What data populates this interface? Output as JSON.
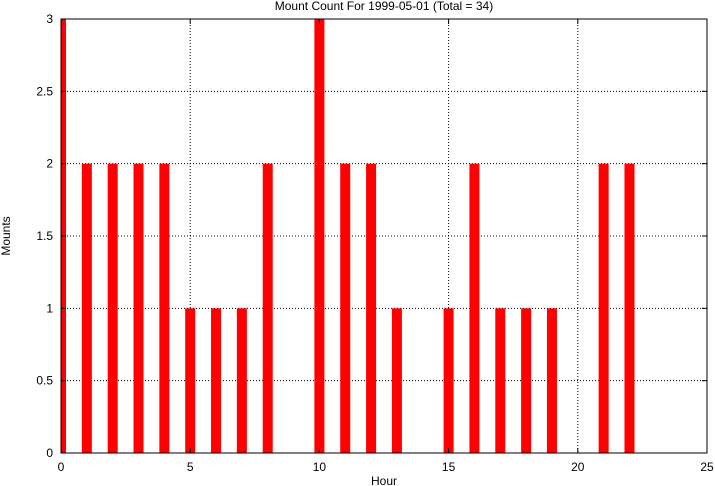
{
  "chart_data": {
    "type": "bar",
    "title": "Mount Count For 1999-05-01 (Total = 34)",
    "xlabel": "Hour",
    "ylabel": "Mounts",
    "xlim": [
      0,
      25
    ],
    "ylim": [
      0,
      3
    ],
    "xticks": [
      0,
      5,
      10,
      15,
      20,
      25
    ],
    "yticks": [
      0,
      0.5,
      1,
      1.5,
      2,
      2.5,
      3
    ],
    "grid": true,
    "bar_color": "#ff0000",
    "x": [
      0,
      1,
      2,
      3,
      4,
      5,
      6,
      7,
      8,
      9,
      10,
      11,
      12,
      13,
      14,
      15,
      16,
      17,
      18,
      19,
      20,
      21,
      22,
      23
    ],
    "values": [
      3,
      2,
      2,
      2,
      2,
      1,
      1,
      1,
      2,
      0,
      3,
      2,
      2,
      1,
      0,
      1,
      2,
      1,
      1,
      1,
      0,
      2,
      2,
      0
    ]
  }
}
